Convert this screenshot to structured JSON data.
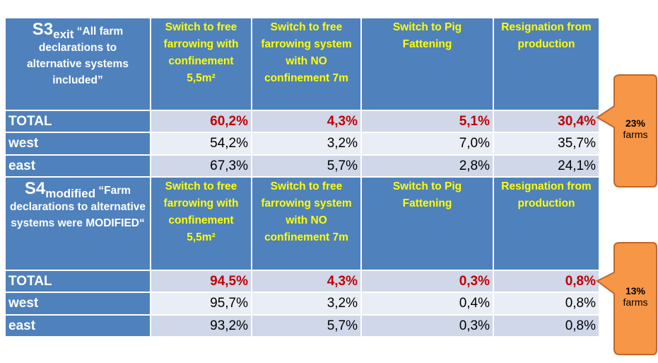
{
  "colors": {
    "header_bg": "#4f81bd",
    "header_text": "#ffff00",
    "label_text": "#ffffff",
    "highlight_value": "#c00000",
    "callout_fill": "#f79646",
    "callout_stroke": "#c0652a"
  },
  "columns": [
    "Switch to free farrowing with confinement 5,5m²",
    "Switch to free farrowing system with NO confinement 7m",
    "Switch to Pig Fattening",
    "Resignation from production"
  ],
  "sections": [
    {
      "title_main": "S3",
      "title_sub": "exit",
      "title_quote_first": "“All farm",
      "title_rest": "declarations to alternative systems included”",
      "rows": [
        {
          "label": "TOTAL",
          "values": [
            "60,2%",
            "4,3%",
            "5,1%",
            "30,4%"
          ]
        },
        {
          "label": "west",
          "values": [
            "54,2%",
            "3,2%",
            "7,0%",
            "35,7%"
          ]
        },
        {
          "label": "east",
          "values": [
            "67,3%",
            "5,7%",
            "2,8%",
            "24,1%"
          ]
        }
      ],
      "callout": {
        "percent": "23%",
        "unit": "farms"
      }
    },
    {
      "title_main": "S4",
      "title_sub": "modified",
      "title_quote_first": "“Farm",
      "title_rest": "declarations to alternative systems were MODIFIED“",
      "rows": [
        {
          "label": "TOTAL",
          "values": [
            "94,5%",
            "4,3%",
            "0,3%",
            "0,8%"
          ]
        },
        {
          "label": "west",
          "values": [
            "95,7%",
            "3,2%",
            "0,4%",
            "0,8%"
          ]
        },
        {
          "label": "east",
          "values": [
            "93,2%",
            "5,7%",
            "0,3%",
            "0,8%"
          ]
        }
      ],
      "callout": {
        "percent": "13%",
        "unit": "farms"
      }
    }
  ]
}
